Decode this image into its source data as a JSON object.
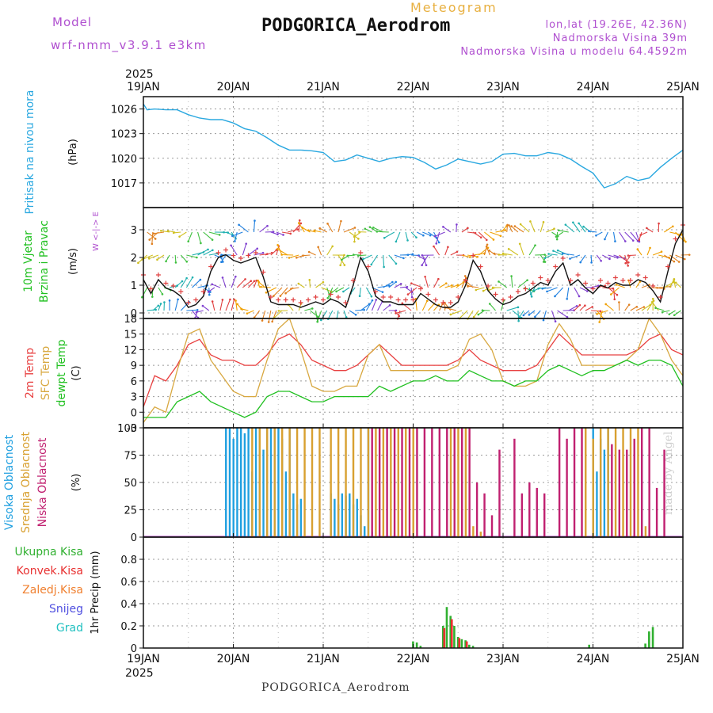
{
  "header": {
    "model_label": "Model",
    "model_name": "wrf-nmm_v3.9.1 e3km",
    "meteogram": "Meteogram",
    "station": "PODGORICA_Aerodrom",
    "lonlat": "lon,lat (19.26E, 42.36N)",
    "elevation": "Nadmorska Visina 39m",
    "model_elevation": "Nadmorska Visina u modelu 64.4592m",
    "year": "2025",
    "footer_station": "PODGORICA_Aerodrom",
    "watermark": "made by Angel"
  },
  "colors": {
    "pressure": "#2aa8e0",
    "wind_speed": "#111111",
    "wind_marker": "#e04040",
    "temp2m": "#e84040",
    "sfc": "#d8a840",
    "dewpt": "#20c020",
    "high_cloud": "#20a0e0",
    "mid_cloud": "#d8a030",
    "low_cloud": "#c02070",
    "precip": "#30b030",
    "convective": "#e83030"
  },
  "chart_data": [
    {
      "type": "line",
      "title": "Pritisak na nivou mora",
      "ylabel": "(hPa)",
      "x_days": [
        "19JAN",
        "20JAN",
        "21JAN",
        "22JAN",
        "23JAN",
        "24JAN",
        "25JAN"
      ],
      "ylim": [
        1014,
        1027.5
      ],
      "yticks": [
        1017,
        1020,
        1023,
        1026
      ],
      "x_hours": [
        0,
        1,
        3,
        6,
        9,
        12,
        15,
        18,
        21,
        24,
        27,
        30,
        33,
        36,
        39,
        42,
        45,
        48,
        51,
        54,
        57,
        60,
        63,
        66,
        69,
        72,
        75,
        78,
        81,
        84,
        87,
        90,
        93,
        96,
        99,
        102,
        105,
        108,
        111,
        114,
        117,
        120,
        123,
        126,
        129,
        132,
        135,
        138,
        141,
        144
      ],
      "values": [
        1026.6,
        1025.9,
        1026.0,
        1025.9,
        1025.9,
        1025.3,
        1024.9,
        1024.7,
        1024.7,
        1024.3,
        1023.6,
        1023.3,
        1022.5,
        1021.6,
        1021.0,
        1021.0,
        1020.9,
        1020.7,
        1019.6,
        1019.8,
        1020.4,
        1020.0,
        1019.6,
        1020.0,
        1020.2,
        1020.1,
        1019.5,
        1018.7,
        1019.2,
        1019.9,
        1019.6,
        1019.3,
        1019.6,
        1020.5,
        1020.6,
        1020.3,
        1020.3,
        1020.7,
        1020.5,
        1019.9,
        1019.0,
        1018.2,
        1016.4,
        1016.9,
        1017.8,
        1017.3,
        1017.6,
        1018.9,
        1020.0,
        1021.0
      ]
    },
    {
      "type": "line",
      "title": "10m Vjetar",
      "subtitle": "Brzina i Pravac",
      "ylabel": "(m/s)",
      "ylim": [
        -0.2,
        3.8
      ],
      "yticks": [
        0,
        1,
        2,
        3
      ],
      "compass": "W <-|-> E",
      "x_hours": [
        0,
        2,
        4,
        6,
        8,
        10,
        12,
        14,
        16,
        18,
        20,
        22,
        24,
        26,
        28,
        30,
        32,
        34,
        36,
        38,
        40,
        42,
        44,
        46,
        48,
        50,
        52,
        54,
        56,
        58,
        60,
        62,
        64,
        66,
        68,
        70,
        72,
        74,
        76,
        78,
        80,
        82,
        84,
        86,
        88,
        90,
        92,
        94,
        96,
        98,
        100,
        102,
        104,
        106,
        108,
        110,
        112,
        114,
        116,
        118,
        120,
        122,
        124,
        126,
        128,
        130,
        132,
        134,
        136,
        138,
        140,
        142,
        144
      ],
      "values": [
        1.2,
        0.7,
        1.2,
        0.9,
        0.8,
        0.6,
        0.2,
        0.3,
        0.6,
        1.5,
        2.0,
        2.1,
        1.9,
        1.8,
        1.9,
        2.0,
        1.3,
        0.4,
        0.3,
        0.3,
        0.3,
        0.2,
        0.3,
        0.4,
        0.3,
        0.5,
        0.4,
        0.2,
        1.0,
        2.0,
        1.5,
        0.6,
        0.4,
        0.4,
        0.3,
        0.3,
        0.3,
        0.7,
        0.5,
        0.3,
        0.2,
        0.2,
        0.4,
        1.0,
        1.9,
        1.5,
        0.8,
        0.5,
        0.3,
        0.4,
        0.6,
        0.7,
        0.9,
        1.1,
        1.0,
        1.5,
        1.8,
        1.0,
        1.2,
        0.9,
        0.7,
        1.0,
        0.9,
        1.1,
        1.0,
        1.0,
        1.2,
        1.1,
        0.8,
        0.4,
        1.5,
        2.5,
        3.0
      ]
    },
    {
      "type": "line",
      "ylabel": "(C)",
      "ylim": [
        -3,
        18
      ],
      "yticks": [
        -3,
        0,
        3,
        6,
        9,
        12,
        15,
        18
      ],
      "x_hours": [
        0,
        3,
        6,
        9,
        12,
        15,
        18,
        21,
        24,
        27,
        30,
        33,
        36,
        39,
        42,
        45,
        48,
        51,
        54,
        57,
        60,
        63,
        66,
        69,
        72,
        75,
        78,
        81,
        84,
        87,
        90,
        93,
        96,
        99,
        102,
        105,
        108,
        111,
        114,
        117,
        120,
        123,
        126,
        129,
        132,
        135,
        138,
        141,
        144
      ],
      "series": [
        {
          "name": "2m Temp",
          "color": "#e84040",
          "values": [
            1,
            7,
            6,
            9,
            13,
            14,
            11,
            10,
            10,
            9,
            9,
            11,
            14,
            15,
            13,
            10,
            9,
            8,
            8,
            9,
            11,
            13,
            11,
            9,
            9,
            9,
            9,
            9,
            10,
            12,
            10,
            9,
            8,
            8,
            8,
            9,
            12,
            15,
            13,
            11,
            11,
            11,
            11,
            11,
            12,
            14,
            15,
            12,
            11
          ]
        },
        {
          "name": "SFC Temp",
          "color": "#d8a840",
          "values": [
            -2,
            1,
            0,
            8,
            15,
            16,
            10,
            7,
            4,
            3,
            3,
            10,
            16,
            18,
            12,
            5,
            4,
            4,
            5,
            5,
            11,
            13,
            8,
            8,
            8,
            8,
            8,
            8,
            9,
            14,
            15,
            12,
            6,
            5,
            5,
            6,
            13,
            17,
            14,
            9,
            9,
            9,
            9,
            10,
            12,
            18,
            15,
            10,
            7
          ]
        },
        {
          "name": "dewpt Temp",
          "color": "#20c020",
          "values": [
            -1,
            -1,
            -1,
            2,
            3,
            4,
            2,
            1,
            0,
            -1,
            0,
            3,
            4,
            4,
            3,
            2,
            2,
            3,
            3,
            3,
            3,
            5,
            4,
            5,
            6,
            6,
            7,
            6,
            6,
            8,
            7,
            6,
            6,
            5,
            6,
            6,
            8,
            9,
            8,
            7,
            8,
            8,
            9,
            10,
            9,
            10,
            10,
            9,
            5
          ]
        }
      ]
    },
    {
      "type": "bar",
      "ylabel": "(%)",
      "ylim": [
        0,
        100
      ],
      "yticks": [
        0,
        25,
        50,
        75,
        100
      ],
      "series": [
        {
          "name": "Visoka Oblacnost",
          "color": "#20a0e0",
          "bars": [
            [
              22,
              100
            ],
            [
              23,
              100
            ],
            [
              24,
              90
            ],
            [
              25,
              100
            ],
            [
              26,
              100
            ],
            [
              27,
              95
            ],
            [
              28,
              100
            ],
            [
              29,
              60
            ],
            [
              30,
              100
            ],
            [
              31,
              100
            ],
            [
              32,
              80
            ],
            [
              33,
              100
            ],
            [
              34,
              100
            ],
            [
              35,
              100
            ],
            [
              36,
              100
            ],
            [
              37,
              90
            ],
            [
              38,
              60
            ],
            [
              39,
              100
            ],
            [
              40,
              40
            ],
            [
              41,
              30
            ],
            [
              42,
              35
            ],
            [
              50,
              40
            ],
            [
              51,
              35
            ],
            [
              52,
              30
            ],
            [
              53,
              40
            ],
            [
              54,
              38
            ],
            [
              55,
              40
            ],
            [
              56,
              30
            ],
            [
              57,
              35
            ],
            [
              58,
              20
            ],
            [
              59,
              10
            ],
            [
              60,
              100
            ],
            [
              61,
              5
            ],
            [
              120,
              100
            ],
            [
              121,
              60
            ],
            [
              122,
              90
            ],
            [
              123,
              80
            ],
            [
              124,
              100
            ],
            [
              133,
              80
            ]
          ]
        },
        {
          "name": "Srednja Oblacnost",
          "color": "#d8a030",
          "bars": [
            [
              29,
              100
            ],
            [
              31,
              100
            ],
            [
              33,
              100
            ],
            [
              35,
              100
            ],
            [
              37,
              100
            ],
            [
              39,
              100
            ],
            [
              41,
              100
            ],
            [
              43,
              100
            ],
            [
              45,
              100
            ],
            [
              47,
              100
            ],
            [
              50,
              100
            ],
            [
              52,
              100
            ],
            [
              54,
              100
            ],
            [
              56,
              100
            ],
            [
              58,
              100
            ],
            [
              60,
              100
            ],
            [
              62,
              100
            ],
            [
              64,
              100
            ],
            [
              66,
              100
            ],
            [
              68,
              100
            ],
            [
              70,
              100
            ],
            [
              72,
              100
            ],
            [
              82,
              100
            ],
            [
              84,
              100
            ],
            [
              86,
              100
            ],
            [
              88,
              10
            ],
            [
              90,
              5
            ],
            [
              118,
              100
            ],
            [
              120,
              90
            ],
            [
              122,
              100
            ],
            [
              124,
              100
            ],
            [
              126,
              100
            ],
            [
              128,
              100
            ],
            [
              130,
              100
            ],
            [
              132,
              100
            ],
            [
              134,
              10
            ]
          ]
        },
        {
          "name": "Niska Oblacnost",
          "color": "#c02070",
          "bars": [
            [
              61,
              100
            ],
            [
              63,
              100
            ],
            [
              65,
              100
            ],
            [
              67,
              100
            ],
            [
              69,
              100
            ],
            [
              71,
              100
            ],
            [
              73,
              100
            ],
            [
              75,
              100
            ],
            [
              77,
              100
            ],
            [
              79,
              100
            ],
            [
              81,
              100
            ],
            [
              83,
              100
            ],
            [
              85,
              100
            ],
            [
              87,
              100
            ],
            [
              89,
              50
            ],
            [
              91,
              40
            ],
            [
              93,
              20
            ],
            [
              95,
              80
            ],
            [
              99,
              90
            ],
            [
              101,
              40
            ],
            [
              103,
              50
            ],
            [
              105,
              45
            ],
            [
              107,
              40
            ],
            [
              111,
              100
            ],
            [
              113,
              90
            ],
            [
              115,
              100
            ],
            [
              117,
              100
            ],
            [
              125,
              85
            ],
            [
              127,
              80
            ],
            [
              129,
              80
            ],
            [
              131,
              90
            ],
            [
              133,
              100
            ],
            [
              135,
              100
            ],
            [
              137,
              45
            ],
            [
              139,
              80
            ]
          ]
        }
      ]
    },
    {
      "type": "bar",
      "ylabel": "1hr Precip (mm)",
      "ylim": [
        0,
        1.0
      ],
      "yticks": [
        0,
        0.2,
        0.4,
        0.6,
        0.8
      ],
      "legend": [
        "Ukupna Kisa",
        "Konvek.Kisa",
        "Zaledj.Kisa",
        "Snijeg",
        "Grad"
      ],
      "series": [
        {
          "name": "Ukupna Kisa",
          "color": "#30b030",
          "bars": [
            [
              72,
              0.06
            ],
            [
              73,
              0.05
            ],
            [
              74,
              0.02
            ],
            [
              80,
              0.2
            ],
            [
              81,
              0.37
            ],
            [
              82,
              0.29
            ],
            [
              83,
              0.2
            ],
            [
              84,
              0.1
            ],
            [
              85,
              0.08
            ],
            [
              86,
              0.07
            ],
            [
              87,
              0.03
            ],
            [
              88,
              0.02
            ],
            [
              119,
              0.03
            ],
            [
              134,
              0.04
            ],
            [
              135,
              0.15
            ],
            [
              136,
              0.19
            ]
          ]
        },
        {
          "name": "Konvek.Kisa",
          "color": "#e83030",
          "bars": [
            [
              80,
              0.18
            ],
            [
              82,
              0.26
            ],
            [
              84,
              0.09
            ],
            [
              86,
              0.06
            ]
          ]
        }
      ]
    }
  ]
}
